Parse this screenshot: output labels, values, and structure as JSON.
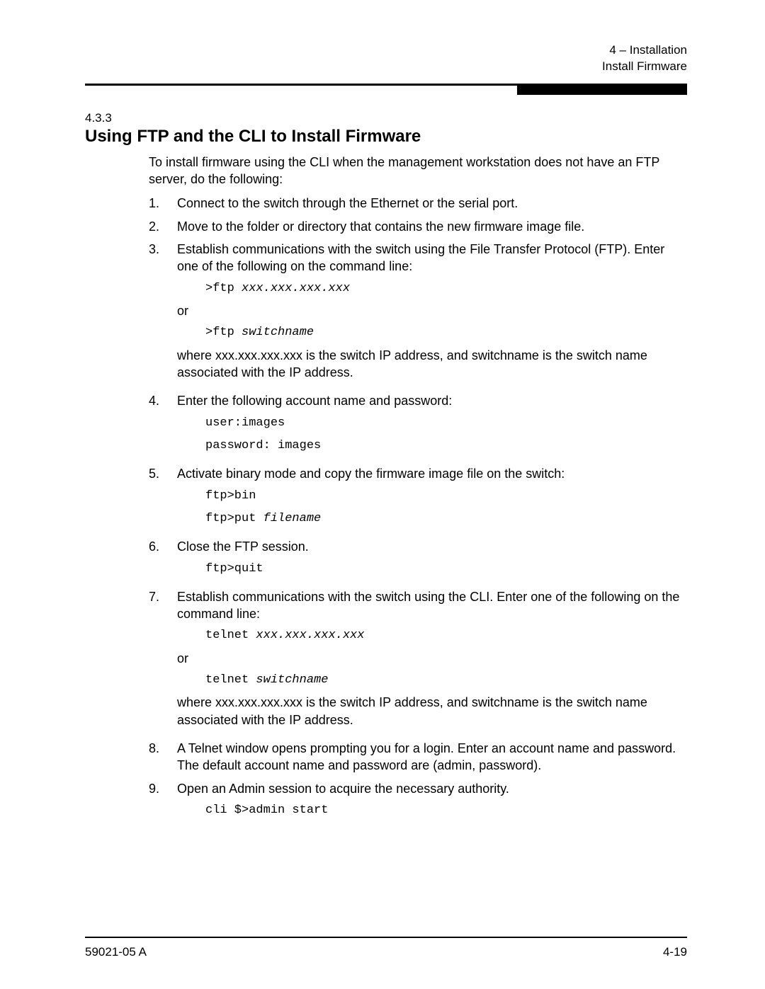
{
  "header": {
    "line1_prefix": "4",
    "line1_sep": " – ",
    "line1_suffix": "Installation",
    "line2": "Install Firmware"
  },
  "section": {
    "number": "4.3.3",
    "title": "Using FTP and the CLI to Install Firmware",
    "intro": "To install firmware using the CLI when the management workstation does not have an FTP server, do the following:"
  },
  "steps": {
    "s1": {
      "n": "1.",
      "text": "Connect to the switch through the Ethernet or the serial port."
    },
    "s2": {
      "n": "2.",
      "text": "Move to the folder or directory that contains the new firmware image file."
    },
    "s3": {
      "n": "3.",
      "text": "Establish communications with the switch using the File Transfer Protocol (FTP). Enter one of the following on the command line:",
      "code1_a": ">ftp ",
      "code1_b": "xxx.xxx.xxx.xxx",
      "or": "or",
      "code2_a": ">ftp ",
      "code2_b": "switchname",
      "note": "where xxx.xxx.xxx.xxx is the switch IP address, and switchname is the switch name associated with the IP address."
    },
    "s4": {
      "n": "4.",
      "text": "Enter the following account name and password:",
      "code1": "user:images",
      "code2": "password: images"
    },
    "s5": {
      "n": "5.",
      "text": "Activate binary mode and copy the firmware image file on the switch:",
      "code1": "ftp>bin",
      "code2_a": "ftp>put ",
      "code2_b": "filename"
    },
    "s6": {
      "n": "6.",
      "text": "Close the FTP session.",
      "code1": "ftp>quit"
    },
    "s7": {
      "n": "7.",
      "text": "Establish communications with the switch using the CLI. Enter one of the following on the command line:",
      "code1_a": "telnet ",
      "code1_b": "xxx.xxx.xxx.xxx",
      "or": "or",
      "code2_a": "telnet ",
      "code2_b": "switchname",
      "note": "where xxx.xxx.xxx.xxx is the switch IP address, and switchname is the switch name associated with the IP address."
    },
    "s8": {
      "n": "8.",
      "text": "A Telnet window opens prompting you for a login. Enter an account name and password. The default account name and password are (admin, password)."
    },
    "s9": {
      "n": "9.",
      "text": "Open an Admin session to acquire the necessary authority.",
      "code1": "cli $>admin start"
    }
  },
  "footer": {
    "left": "59021-05  A",
    "right": "4-19"
  }
}
